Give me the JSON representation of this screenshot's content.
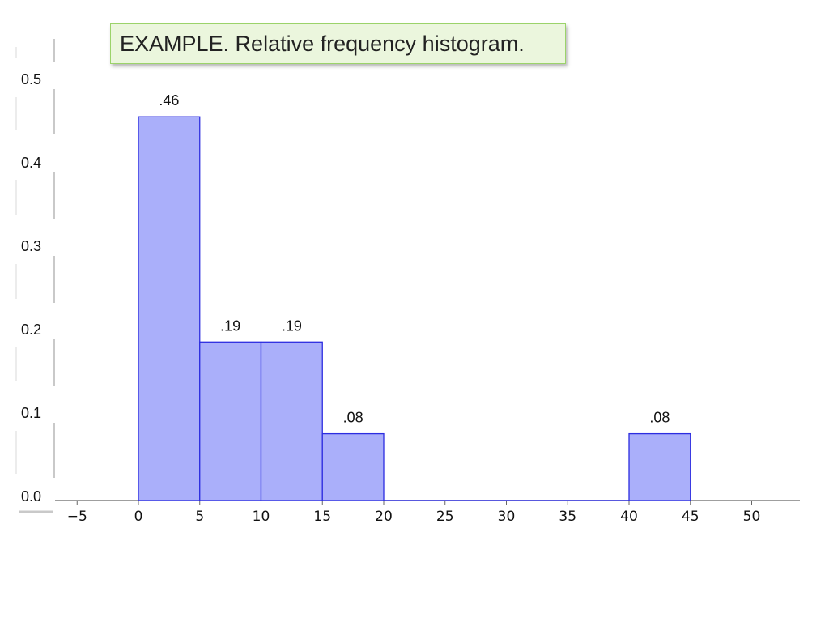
{
  "title": "EXAMPLE. Relative frequency histogram.",
  "chart_data": {
    "type": "bar",
    "title": "EXAMPLE. Relative frequency histogram.",
    "bins": [
      {
        "x0": 0,
        "x1": 5,
        "value": 0.46,
        "label": ".46"
      },
      {
        "x0": 5,
        "x1": 10,
        "value": 0.19,
        "label": ".19"
      },
      {
        "x0": 10,
        "x1": 15,
        "value": 0.19,
        "label": ".19"
      },
      {
        "x0": 15,
        "x1": 20,
        "value": 0.08,
        "label": ".08"
      },
      {
        "x0": 20,
        "x1": 25,
        "value": 0,
        "label": ""
      },
      {
        "x0": 25,
        "x1": 30,
        "value": 0,
        "label": ""
      },
      {
        "x0": 30,
        "x1": 35,
        "value": 0,
        "label": ""
      },
      {
        "x0": 35,
        "x1": 40,
        "value": 0,
        "label": ""
      },
      {
        "x0": 40,
        "x1": 45,
        "value": 0.08,
        "label": ".08"
      }
    ],
    "x_ticks": [
      "−5",
      "0",
      "5",
      "10",
      "15",
      "20",
      "25",
      "30",
      "35",
      "40",
      "45",
      "50"
    ],
    "x_tick_values": [
      -5,
      0,
      5,
      10,
      15,
      20,
      25,
      30,
      35,
      40,
      45,
      50
    ],
    "y_ticks": [
      "0.0",
      "0.1",
      "0.2",
      "0.3",
      "0.4",
      "0.5"
    ],
    "y_tick_values": [
      0,
      0.1,
      0.2,
      0.3,
      0.4,
      0.5
    ],
    "xlim": [
      -5,
      50
    ],
    "ylim": [
      0,
      0.5
    ],
    "xlabel": "",
    "ylabel": "",
    "grid": false,
    "colors": {
      "bar_fill": "#aaaffa",
      "bar_stroke": "#2d2de0",
      "axis": "#666666"
    }
  }
}
